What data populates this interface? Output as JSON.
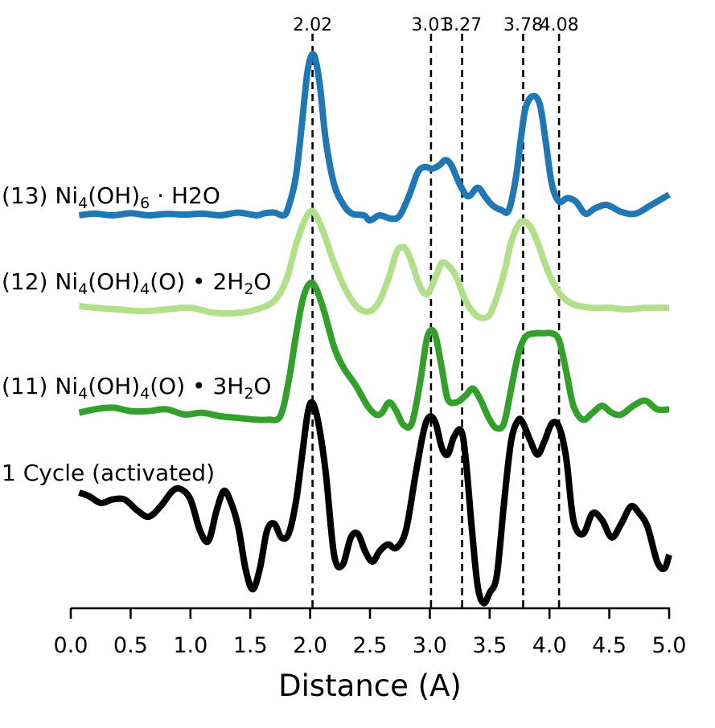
{
  "chart_data": {
    "type": "line",
    "title": "",
    "xlabel": "Distance (A)",
    "ylabel": "",
    "xlim": [
      0.0,
      5.0
    ],
    "xticks": [
      0.0,
      0.5,
      1.0,
      1.5,
      2.0,
      2.5,
      3.0,
      3.5,
      4.0,
      4.5,
      5.0
    ],
    "xtick_labels": [
      "0.0",
      "0.5",
      "1.0",
      "1.5",
      "2.0",
      "2.5",
      "3.0",
      "3.5",
      "4.0",
      "4.5",
      "5.0"
    ],
    "grid": false,
    "legend": "none",
    "reference_lines": [
      {
        "x": 2.02,
        "label": "2.02"
      },
      {
        "x": 3.01,
        "label": "3.01"
      },
      {
        "x": 3.27,
        "label": "3.27"
      },
      {
        "x": 3.78,
        "label": "3.78"
      },
      {
        "x": 4.08,
        "label": "4.08"
      }
    ],
    "series": [
      {
        "name": "(13) Ni4(OH)6 · H2O",
        "color": "#1f77b4",
        "label": {
          "pre": "(13) Ni",
          "s1": "4",
          "mid": "(OH)",
          "s2": "6",
          "post": " · H2O"
        },
        "x": [
          0.07,
          0.2,
          0.35,
          0.5,
          0.65,
          0.8,
          0.95,
          1.1,
          1.25,
          1.4,
          1.55,
          1.62,
          1.7,
          1.78,
          1.82,
          1.88,
          1.93,
          1.98,
          2.03,
          2.08,
          2.13,
          2.2,
          2.28,
          2.35,
          2.45,
          2.5,
          2.58,
          2.68,
          2.75,
          2.83,
          2.9,
          2.96,
          3.02,
          3.08,
          3.13,
          3.18,
          3.25,
          3.32,
          3.4,
          3.46,
          3.52,
          3.6,
          3.66,
          3.72,
          3.76,
          3.8,
          3.86,
          3.92,
          3.97,
          4.02,
          4.08,
          4.15,
          4.22,
          4.3,
          4.38,
          4.48,
          4.6,
          4.72,
          4.85,
          5.0
        ],
        "y": [
          0.0,
          0.05,
          0.0,
          0.06,
          0.0,
          0.04,
          0.02,
          0.05,
          0.0,
          0.08,
          0.0,
          0.06,
          0.08,
          0.0,
          0.25,
          1.1,
          2.6,
          4.2,
          4.65,
          3.8,
          2.2,
          0.9,
          0.3,
          0.05,
          0.0,
          -0.15,
          0.0,
          -0.1,
          0.0,
          0.6,
          1.25,
          1.4,
          1.35,
          1.45,
          1.6,
          1.45,
          0.9,
          0.55,
          0.8,
          0.55,
          0.3,
          0.15,
          0.15,
          1.1,
          2.2,
          3.1,
          3.45,
          3.2,
          2.1,
          0.9,
          0.4,
          0.5,
          0.4,
          0.05,
          0.2,
          0.3,
          0.1,
          0.05,
          0.3,
          0.6
        ]
      },
      {
        "name": "(12) Ni4(OH)4(O) • 2H2O",
        "color": "#b2df8a",
        "label": {
          "pre": "(12) Ni",
          "s1": "4",
          "mid": "(OH)",
          "s2": "4",
          "post": "(O) • 2H",
          "s3": "2",
          "post2": "O"
        },
        "x": [
          0.07,
          0.2,
          0.4,
          0.6,
          0.8,
          1.0,
          1.2,
          1.4,
          1.55,
          1.7,
          1.8,
          1.88,
          1.95,
          2.01,
          2.06,
          2.12,
          2.2,
          2.3,
          2.4,
          2.5,
          2.58,
          2.66,
          2.72,
          2.76,
          2.8,
          2.86,
          2.92,
          2.98,
          3.05,
          3.1,
          3.16,
          3.22,
          3.3,
          3.38,
          3.45,
          3.5,
          3.55,
          3.62,
          3.68,
          3.74,
          3.78,
          3.84,
          3.9,
          3.96,
          4.02,
          4.1,
          4.2,
          4.35,
          4.5,
          4.65,
          4.8,
          5.0
        ],
        "y": [
          0.05,
          0.0,
          -0.05,
          -0.1,
          -0.05,
          0.0,
          -0.15,
          -0.15,
          -0.05,
          0.2,
          0.8,
          1.8,
          2.5,
          2.8,
          2.6,
          2.1,
          1.3,
          0.5,
          0.0,
          -0.1,
          0.2,
          0.9,
          1.6,
          1.75,
          1.7,
          1.2,
          0.6,
          0.4,
          0.9,
          1.3,
          1.2,
          0.9,
          0.2,
          -0.2,
          -0.3,
          -0.2,
          0.2,
          1.0,
          1.9,
          2.4,
          2.5,
          2.35,
          1.9,
          1.3,
          0.8,
          0.35,
          0.1,
          0.0,
          0.0,
          -0.05,
          0.0,
          0.0
        ]
      },
      {
        "name": "(11) Ni4(OH)4(O) • 3H2O",
        "color": "#33a02c",
        "label": {
          "pre": "(11) Ni",
          "s1": "4",
          "mid": "(OH)",
          "s2": "4",
          "post": "(O) • 3H",
          "s3": "2",
          "post2": "O"
        },
        "x": [
          0.07,
          0.2,
          0.35,
          0.5,
          0.65,
          0.8,
          0.95,
          1.1,
          1.25,
          1.4,
          1.55,
          1.65,
          1.75,
          1.82,
          1.88,
          1.94,
          2.0,
          2.05,
          2.12,
          2.2,
          2.28,
          2.38,
          2.48,
          2.55,
          2.6,
          2.66,
          2.72,
          2.78,
          2.85,
          2.92,
          2.98,
          3.04,
          3.1,
          3.15,
          3.22,
          3.3,
          3.36,
          3.42,
          3.5,
          3.56,
          3.62,
          3.68,
          3.74,
          3.8,
          3.88,
          3.95,
          4.02,
          4.08,
          4.14,
          4.2,
          4.28,
          4.36,
          4.44,
          4.52,
          4.6,
          4.7,
          4.8,
          4.9,
          5.0
        ],
        "y": [
          0.1,
          0.2,
          0.25,
          0.15,
          0.15,
          0.2,
          0.05,
          0.1,
          0.0,
          -0.05,
          -0.1,
          -0.1,
          0.0,
          1.0,
          2.3,
          3.4,
          3.85,
          3.7,
          3.0,
          2.0,
          1.4,
          0.9,
          0.3,
          0.05,
          0.1,
          0.4,
          0.15,
          -0.25,
          -0.2,
          1.0,
          2.3,
          2.4,
          1.4,
          0.5,
          0.4,
          0.6,
          0.8,
          0.5,
          -0.1,
          -0.35,
          -0.2,
          0.8,
          1.8,
          2.3,
          2.4,
          2.4,
          2.4,
          2.2,
          1.3,
          0.3,
          -0.1,
          0.1,
          0.3,
          0.1,
          0.05,
          0.3,
          0.45,
          0.2,
          0.2
        ]
      },
      {
        "name": "1 Cycle (activated)",
        "color": "#000000",
        "label": {
          "pre": "1 Cycle (activated)"
        },
        "x": [
          0.07,
          0.15,
          0.25,
          0.35,
          0.45,
          0.55,
          0.65,
          0.75,
          0.85,
          0.92,
          1.0,
          1.08,
          1.15,
          1.22,
          1.28,
          1.34,
          1.4,
          1.46,
          1.52,
          1.58,
          1.64,
          1.7,
          1.76,
          1.82,
          1.88,
          1.93,
          1.98,
          2.02,
          2.07,
          2.13,
          2.2,
          2.27,
          2.34,
          2.4,
          2.46,
          2.52,
          2.58,
          2.65,
          2.72,
          2.8,
          2.88,
          2.95,
          3.0,
          3.05,
          3.1,
          3.15,
          3.2,
          3.26,
          3.3,
          3.35,
          3.4,
          3.45,
          3.5,
          3.56,
          3.62,
          3.68,
          3.74,
          3.78,
          3.84,
          3.9,
          3.96,
          4.02,
          4.08,
          4.14,
          4.2,
          4.28,
          4.36,
          4.44,
          4.52,
          4.6,
          4.68,
          4.75,
          4.82,
          4.9,
          4.96,
          5.0
        ],
        "y": [
          0.0,
          -0.1,
          -0.3,
          -0.2,
          -0.2,
          -0.5,
          -0.7,
          -0.4,
          0.05,
          0.1,
          -0.2,
          -1.1,
          -1.4,
          -0.5,
          0.05,
          -0.3,
          -1.0,
          -2.2,
          -2.8,
          -2.2,
          -1.1,
          -0.9,
          -1.3,
          -1.2,
          -0.3,
          1.0,
          2.3,
          2.6,
          2.0,
          0.6,
          -1.8,
          -2.1,
          -1.3,
          -1.2,
          -1.7,
          -2.0,
          -1.7,
          -1.5,
          -1.6,
          -1.1,
          0.5,
          1.8,
          2.2,
          2.0,
          1.3,
          1.1,
          1.6,
          1.8,
          1.0,
          -1.0,
          -2.7,
          -3.2,
          -2.9,
          -2.4,
          -0.3,
          1.5,
          2.1,
          2.0,
          1.5,
          1.1,
          1.5,
          2.0,
          1.9,
          1.0,
          -0.8,
          -1.2,
          -0.6,
          -0.8,
          -1.3,
          -0.9,
          -0.4,
          -0.6,
          -1.0,
          -2.0,
          -2.2,
          -1.8
        ]
      }
    ]
  }
}
